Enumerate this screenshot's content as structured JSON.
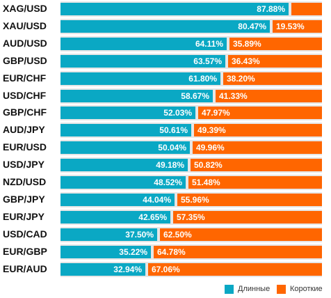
{
  "chart_data": {
    "type": "bar",
    "orientation": "horizontal",
    "stacked": "100%",
    "categories": [
      "XAG/USD",
      "XAU/USD",
      "AUD/USD",
      "GBP/USD",
      "EUR/CHF",
      "USD/CHF",
      "GBP/CHF",
      "AUD/JPY",
      "EUR/USD",
      "USD/JPY",
      "NZD/USD",
      "GBP/JPY",
      "EUR/JPY",
      "USD/CAD",
      "EUR/GBP",
      "EUR/AUD"
    ],
    "series": [
      {
        "name": "Длинные",
        "color": "#0aa8c4",
        "values": [
          87.88,
          80.47,
          64.11,
          63.57,
          61.8,
          58.67,
          52.03,
          50.61,
          50.04,
          49.18,
          48.52,
          44.04,
          42.65,
          37.5,
          35.22,
          32.94
        ],
        "labels": [
          "87.88%",
          "80.47%",
          "64.11%",
          "63.57%",
          "61.80%",
          "58.67%",
          "52.03%",
          "50.61%",
          "50.04%",
          "49.18%",
          "48.52%",
          "44.04%",
          "42.65%",
          "37.50%",
          "35.22%",
          "32.94%"
        ]
      },
      {
        "name": "Короткие",
        "color": "#ff6600",
        "values": [
          12.12,
          19.53,
          35.89,
          36.43,
          38.2,
          41.33,
          47.97,
          49.39,
          49.96,
          50.82,
          51.48,
          55.96,
          57.35,
          62.5,
          64.78,
          67.06
        ],
        "labels": [
          "",
          "19.53%",
          "35.89%",
          "36.43%",
          "38.20%",
          "41.33%",
          "47.97%",
          "49.39%",
          "49.96%",
          "50.82%",
          "51.48%",
          "55.96%",
          "57.35%",
          "62.50%",
          "64.78%",
          "67.06%"
        ]
      }
    ],
    "xlim": [
      0,
      100
    ],
    "legend": "bottom-right",
    "grid": false
  },
  "legend": {
    "long": "Длинные",
    "short": "Короткие"
  }
}
